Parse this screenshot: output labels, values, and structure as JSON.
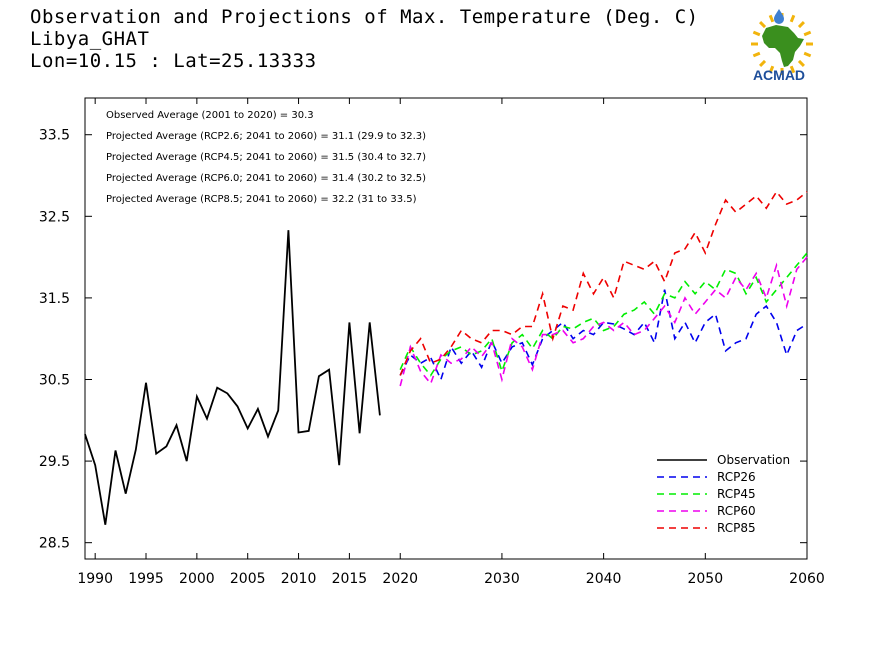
{
  "header": {
    "title": "Observation and Projections of Max. Temperature (Deg. C)",
    "location": "Libya_GHAT",
    "coordinates": "Lon=10.15 : Lat=25.13333"
  },
  "logo": {
    "text": "ACMAD",
    "icon": "africa-sun-logo",
    "colors": {
      "africa": "#3a8f1e",
      "sun": "#f2b40c",
      "text": "#1e4e9a",
      "drop": "#3f7fd0"
    }
  },
  "stats": [
    "Observed Average (2001 to 2020) = 30.3",
    "Projected Average (RCP2.6; 2041 to 2060) = 31.1 (29.9 to 32.3)",
    "Projected Average (RCP4.5; 2041 to 2060) = 31.5 (30.4 to 32.7)",
    "Projected Average (RCP6.0; 2041 to 2060) = 31.4 (30.2 to 32.5)",
    "Projected Average (RCP8.5; 2041 to 2060) = 32.2 (31 to 33.5)"
  ],
  "chart_data": {
    "type": "line",
    "title": "Observation and Projections of Max. Temperature (Deg. C)",
    "xlim": [
      1989,
      2060
    ],
    "ylim": [
      28.3,
      33.95
    ],
    "x_ticks": [
      {
        "value": 1990,
        "label": "1990"
      },
      {
        "value": 1995,
        "label": "1995"
      },
      {
        "value": 2000,
        "label": "2000"
      },
      {
        "value": 2005,
        "label": "2005"
      },
      {
        "value": 2010,
        "label": "2010"
      },
      {
        "value": 2015,
        "label": "2015"
      },
      {
        "value": 2020,
        "label": "2020"
      },
      {
        "value": 2030,
        "label": "2030"
      },
      {
        "value": 2040,
        "label": "2040"
      },
      {
        "value": 2050,
        "label": "2050"
      },
      {
        "value": 2060,
        "label": "2060"
      }
    ],
    "y_ticks": [
      {
        "value": 28.5,
        "label": "28.5"
      },
      {
        "value": 29.5,
        "label": "29.5"
      },
      {
        "value": 30.5,
        "label": "30.5"
      },
      {
        "value": 31.5,
        "label": "31.5"
      },
      {
        "value": 32.5,
        "label": "32.5"
      },
      {
        "value": 33.5,
        "label": "33.5"
      }
    ],
    "grid": false,
    "legend_position": "bottom-right",
    "series": [
      {
        "name": "Observation",
        "color": "#000000",
        "dashed": false,
        "x": [
          1989,
          1990,
          1991,
          1992,
          1993,
          1994,
          1995,
          1996,
          1997,
          1998,
          1999,
          2000,
          2001,
          2002,
          2003,
          2004,
          2005,
          2006,
          2007,
          2008,
          2009,
          2010,
          2011,
          2012,
          2013,
          2014,
          2015,
          2016,
          2017,
          2018,
          2019
        ],
        "y": [
          29.83,
          29.45,
          28.72,
          29.63,
          29.1,
          29.64,
          30.46,
          29.59,
          29.68,
          29.94,
          29.5,
          30.29,
          30.02,
          30.4,
          30.33,
          30.17,
          29.9,
          30.14,
          29.8,
          30.12,
          32.33,
          29.85,
          29.87,
          30.54,
          30.62,
          29.45,
          31.2,
          29.84,
          31.2,
          30.06,
          null
        ]
      },
      {
        "name": "RCP26",
        "color": "#0000ee",
        "dashed": true,
        "x": [
          2020,
          2021,
          2022,
          2023,
          2024,
          2025,
          2026,
          2027,
          2028,
          2029,
          2030,
          2031,
          2032,
          2033,
          2034,
          2035,
          2036,
          2037,
          2038,
          2039,
          2040,
          2041,
          2042,
          2043,
          2044,
          2045,
          2046,
          2047,
          2048,
          2049,
          2050,
          2051,
          2052,
          2053,
          2054,
          2055,
          2056,
          2057,
          2058,
          2059,
          2060
        ],
        "y": [
          30.55,
          30.8,
          30.7,
          30.77,
          30.5,
          30.9,
          30.7,
          30.85,
          30.65,
          30.97,
          30.7,
          30.9,
          30.95,
          30.68,
          31.0,
          31.1,
          31.2,
          31.0,
          31.1,
          31.05,
          31.2,
          31.18,
          31.12,
          31.05,
          31.2,
          30.95,
          31.6,
          31.0,
          31.2,
          30.95,
          31.2,
          31.3,
          30.85,
          30.95,
          31.0,
          31.3,
          31.4,
          31.2,
          30.8,
          31.1,
          31.18
        ]
      },
      {
        "name": "RCP45",
        "color": "#00ee00",
        "dashed": true,
        "x": [
          2020,
          2021,
          2022,
          2023,
          2024,
          2025,
          2026,
          2027,
          2028,
          2029,
          2030,
          2031,
          2032,
          2033,
          2034,
          2035,
          2036,
          2037,
          2038,
          2039,
          2040,
          2041,
          2042,
          2043,
          2044,
          2045,
          2046,
          2047,
          2048,
          2049,
          2050,
          2051,
          2052,
          2053,
          2054,
          2055,
          2056,
          2057,
          2058,
          2059,
          2060
        ],
        "y": [
          30.62,
          30.9,
          30.7,
          30.55,
          30.75,
          30.85,
          30.9,
          30.8,
          30.85,
          31.0,
          30.6,
          30.95,
          31.05,
          30.88,
          31.1,
          31.0,
          31.15,
          31.12,
          31.2,
          31.25,
          31.1,
          31.15,
          31.3,
          31.35,
          31.45,
          31.3,
          31.55,
          31.5,
          31.7,
          31.55,
          31.7,
          31.6,
          31.85,
          31.8,
          31.55,
          31.75,
          31.45,
          31.6,
          31.75,
          31.9,
          32.05
        ]
      },
      {
        "name": "RCP60",
        "color": "#ee00ee",
        "dashed": true,
        "x": [
          2020,
          2021,
          2022,
          2023,
          2024,
          2025,
          2026,
          2027,
          2028,
          2029,
          2030,
          2031,
          2032,
          2033,
          2034,
          2035,
          2036,
          2037,
          2038,
          2039,
          2040,
          2041,
          2042,
          2043,
          2044,
          2045,
          2046,
          2047,
          2048,
          2049,
          2050,
          2051,
          2052,
          2053,
          2054,
          2055,
          2056,
          2057,
          2058,
          2059,
          2060
        ],
        "y": [
          30.42,
          30.9,
          30.6,
          30.45,
          30.8,
          30.7,
          30.75,
          30.9,
          30.78,
          30.95,
          30.5,
          31.0,
          30.9,
          30.62,
          31.05,
          31.05,
          31.1,
          30.95,
          31.0,
          31.15,
          31.2,
          31.1,
          31.2,
          31.05,
          31.1,
          31.25,
          31.4,
          31.2,
          31.5,
          31.3,
          31.45,
          31.6,
          31.5,
          31.75,
          31.6,
          31.8,
          31.5,
          31.9,
          31.4,
          31.85,
          32.0
        ]
      },
      {
        "name": "RCP85",
        "color": "#ee0000",
        "dashed": true,
        "x": [
          2020,
          2021,
          2022,
          2023,
          2024,
          2025,
          2026,
          2027,
          2028,
          2029,
          2030,
          2031,
          2032,
          2033,
          2034,
          2035,
          2036,
          2037,
          2038,
          2039,
          2040,
          2041,
          2042,
          2043,
          2044,
          2045,
          2046,
          2047,
          2048,
          2049,
          2050,
          2051,
          2052,
          2053,
          2054,
          2055,
          2056,
          2057,
          2058,
          2059,
          2060
        ],
        "y": [
          30.55,
          30.85,
          31.0,
          30.7,
          30.75,
          30.9,
          31.1,
          31.0,
          30.95,
          31.1,
          31.1,
          31.05,
          31.15,
          31.15,
          31.55,
          31.0,
          31.4,
          31.35,
          31.8,
          31.55,
          31.75,
          31.5,
          31.95,
          31.9,
          31.85,
          31.95,
          31.7,
          32.05,
          32.1,
          32.3,
          32.05,
          32.4,
          32.7,
          32.55,
          32.65,
          32.75,
          32.6,
          32.8,
          32.65,
          32.7,
          32.8
        ]
      }
    ]
  }
}
